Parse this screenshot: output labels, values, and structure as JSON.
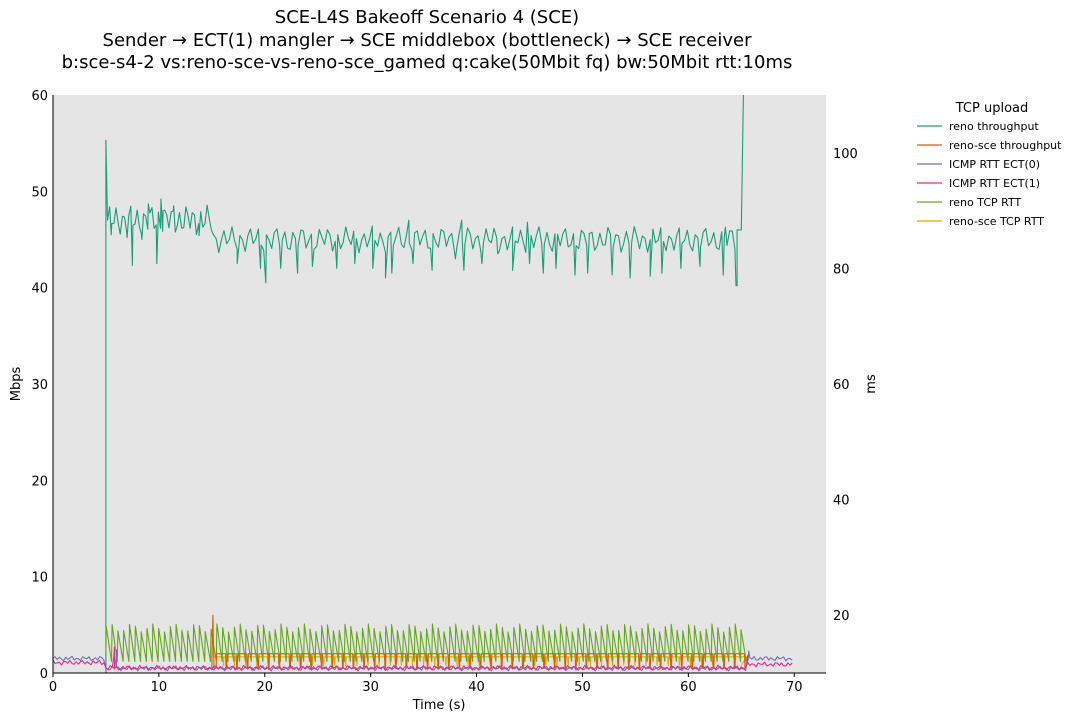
{
  "chart_data": {
    "type": "line",
    "title": "SCE-L4S Bakeoff Scenario 4 (SCE)",
    "subtitle": "Sender → ECT(1) mangler → SCE middlebox (bottleneck) → SCE receiver",
    "subtitle2": "b:sce-s4-2 vs:reno-sce-vs-reno-sce_gamed q:cake(50Mbit fq) bw:50Mbit rtt:10ms",
    "xlabel": "Time (s)",
    "ylabel": "Mbps",
    "y2label": "ms",
    "xlim": [
      0,
      73
    ],
    "ylim": [
      0,
      60
    ],
    "y2lim": [
      10,
      110
    ],
    "xticks": [
      "0",
      "10",
      "20",
      "30",
      "40",
      "50",
      "60",
      "70"
    ],
    "yticks": [
      "0",
      "10",
      "20",
      "30",
      "40",
      "50",
      "60"
    ],
    "y2ticks": [
      "20",
      "40",
      "60",
      "80",
      "100"
    ],
    "grid": false,
    "legend": {
      "title": "TCP upload",
      "placement": "outside-top-right",
      "entries": [
        "reno throughput",
        "reno-sce throughput",
        "ICMP RTT ECT(0)",
        "ICMP RTT ECT(1)",
        "reno TCP RTT",
        "reno-sce TCP RTT"
      ]
    },
    "series": [
      {
        "name": "reno throughput",
        "axis": "left",
        "color": "#1b9e77",
        "start": 5.0,
        "end": 65.0,
        "spike_start": 55.3,
        "phase1": {
          "until": 15.0,
          "level": 47.0,
          "period": 0.4,
          "amp": 1.2
        },
        "phase2": {
          "level": 45.0,
          "period": 0.5,
          "amp": 1.0
        },
        "dips": [
          [
            5.5,
            45.5
          ],
          [
            7.0,
            45.2
          ],
          [
            7.5,
            42.3
          ],
          [
            8.4,
            45.0
          ],
          [
            9.8,
            42.5
          ],
          [
            10.4,
            48.0
          ],
          [
            13.8,
            45.4
          ],
          [
            15.6,
            44.0
          ],
          [
            17.4,
            42.5
          ],
          [
            19.6,
            42.0
          ],
          [
            20.1,
            40.5
          ],
          [
            21.5,
            42.0
          ],
          [
            23.1,
            41.5
          ],
          [
            24.5,
            42.2
          ],
          [
            26.8,
            42.0
          ],
          [
            28.5,
            42.5
          ],
          [
            30.2,
            42.0
          ],
          [
            31.4,
            41.0
          ],
          [
            32.0,
            41.5
          ],
          [
            34.0,
            42.5
          ],
          [
            35.8,
            41.8
          ],
          [
            38.0,
            43.0
          ],
          [
            38.8,
            41.8
          ],
          [
            40.5,
            42.5
          ],
          [
            42.0,
            43.5
          ],
          [
            43.4,
            41.8
          ],
          [
            45.0,
            42.5
          ],
          [
            46.3,
            41.5
          ],
          [
            47.5,
            42.0
          ],
          [
            49.3,
            41.3
          ],
          [
            50.5,
            41.5
          ],
          [
            52.8,
            41.3
          ],
          [
            54.5,
            41.0
          ],
          [
            56.4,
            41.2
          ],
          [
            57.5,
            41.5
          ],
          [
            59.3,
            42.0
          ],
          [
            61.1,
            42.2
          ],
          [
            63.3,
            41.3
          ],
          [
            64.5,
            40.2
          ]
        ],
        "peaks": [
          [
            9.0,
            48.7
          ],
          [
            10.2,
            49.2
          ],
          [
            11.4,
            48.5
          ],
          [
            33.6,
            47.0
          ],
          [
            38.6,
            47.0
          ],
          [
            44.8,
            46.8
          ],
          [
            63.5,
            46.3
          ]
        ],
        "end_spike": [
          [
            64.6,
            40.2
          ],
          [
            64.6,
            46.0
          ],
          [
            65.0,
            46.0
          ],
          [
            65.2,
            60.0
          ]
        ]
      },
      {
        "name": "reno-sce throughput",
        "axis": "left",
        "color": "#d95f02",
        "start": 15.0,
        "end": 65.5,
        "baseline": 0.5,
        "spike": [
          15.1,
          6.0
        ],
        "plateau_level": 2.0,
        "plateau_period": 1.0
      },
      {
        "name": "ICMP RTT ECT(0)",
        "axis": "right",
        "color": "#7570b3",
        "start": 0.0,
        "end": 70.0,
        "base_pre": 12.5,
        "base_mid": 10.8,
        "base_post": 12.5,
        "bumps": [
          [
            6.0,
            14.0
          ],
          [
            65.7,
            13.8
          ]
        ]
      },
      {
        "name": "ICMP RTT ECT(1)",
        "axis": "right",
        "color": "#e7298a",
        "start": 0.0,
        "end": 70.0,
        "base_pre": 11.8,
        "base_mid": 10.9,
        "base_post": 11.5,
        "bumps": [
          [
            5.8,
            14.5
          ],
          [
            65.6,
            13.0
          ]
        ]
      },
      {
        "name": "reno TCP RTT",
        "axis": "right",
        "color": "#66a61e",
        "start": 5.0,
        "end": 65.2,
        "low": 12.0,
        "high": 17.8,
        "period": 0.55
      },
      {
        "name": "reno-sce TCP RTT",
        "axis": "right",
        "color": "#e6ab02",
        "start": 15.1,
        "end": 65.0,
        "low": 11.3,
        "high": 12.8,
        "period": 1.05
      }
    ]
  }
}
